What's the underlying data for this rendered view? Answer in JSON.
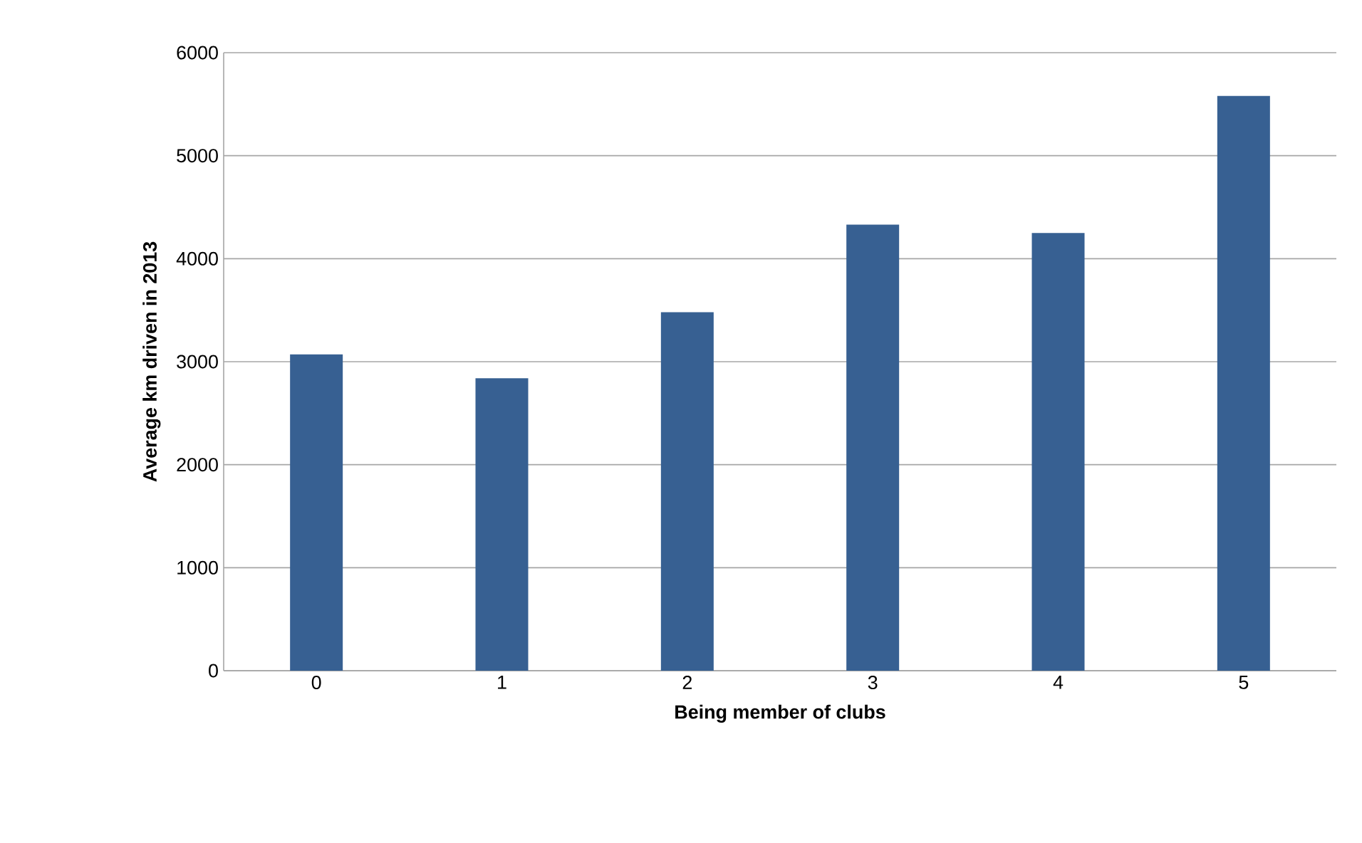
{
  "chart_data": {
    "type": "bar",
    "xlabel": "Being member of clubs",
    "ylabel": "Average km driven in 2013",
    "categories": [
      "0",
      "1",
      "2",
      "3",
      "4",
      "5"
    ],
    "values": [
      3070,
      2840,
      3480,
      4330,
      4250,
      5580
    ],
    "color": "#376092",
    "ylim": [
      0,
      6000
    ],
    "yticks": [
      0,
      1000,
      2000,
      3000,
      4000,
      5000,
      6000
    ],
    "grid": "y"
  }
}
